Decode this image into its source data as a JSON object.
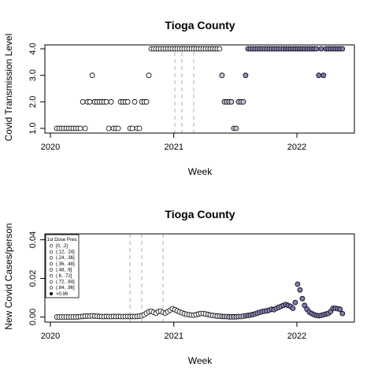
{
  "chart_data": [
    {
      "type": "scatter",
      "title": "Tioga County",
      "xlabel": "Week",
      "ylabel": "Covid Transmission Level",
      "x_ticks": [
        "2020",
        "2021",
        "2022"
      ],
      "y_ticks": [
        "1.0",
        "2.0",
        "3.0",
        "4.0"
      ],
      "ylim": [
        0.9,
        4.1
      ],
      "grid": false,
      "vlines": [
        "2021-01-04",
        "2021-01-25",
        "2021-03-01"
      ],
      "points": [
        [
          "2020-01-20",
          1,
          0
        ],
        [
          "2020-01-27",
          1,
          0
        ],
        [
          "2020-02-03",
          1,
          0
        ],
        [
          "2020-02-10",
          1,
          0
        ],
        [
          "2020-02-17",
          1,
          0
        ],
        [
          "2020-02-24",
          1,
          0
        ],
        [
          "2020-03-02",
          1,
          0
        ],
        [
          "2020-03-09",
          1,
          0
        ],
        [
          "2020-03-16",
          1,
          0
        ],
        [
          "2020-03-23",
          1,
          0
        ],
        [
          "2020-03-30",
          1,
          0
        ],
        [
          "2020-04-06",
          2,
          0
        ],
        [
          "2020-04-13",
          1,
          0
        ],
        [
          "2020-04-20",
          2,
          0
        ],
        [
          "2020-04-27",
          2,
          0
        ],
        [
          "2020-05-04",
          3,
          0
        ],
        [
          "2020-05-11",
          2,
          0
        ],
        [
          "2020-05-18",
          2,
          0
        ],
        [
          "2020-05-25",
          2,
          0
        ],
        [
          "2020-06-01",
          2,
          0
        ],
        [
          "2020-06-08",
          2,
          0
        ],
        [
          "2020-06-15",
          2,
          0
        ],
        [
          "2020-06-22",
          1,
          0
        ],
        [
          "2020-06-29",
          2,
          0
        ],
        [
          "2020-07-06",
          1,
          0
        ],
        [
          "2020-07-13",
          1,
          0
        ],
        [
          "2020-07-20",
          1,
          0
        ],
        [
          "2020-07-27",
          2,
          0
        ],
        [
          "2020-08-03",
          2,
          0
        ],
        [
          "2020-08-10",
          2,
          0
        ],
        [
          "2020-08-17",
          2,
          0
        ],
        [
          "2020-08-24",
          1,
          0
        ],
        [
          "2020-08-31",
          1,
          0
        ],
        [
          "2020-09-07",
          2,
          0
        ],
        [
          "2020-09-14",
          1,
          0
        ],
        [
          "2020-09-21",
          1,
          0
        ],
        [
          "2020-09-28",
          2,
          0
        ],
        [
          "2020-10-05",
          2,
          0
        ],
        [
          "2020-10-12",
          2,
          0
        ],
        [
          "2020-10-19",
          3,
          0
        ],
        [
          "2020-10-26",
          4,
          0
        ],
        [
          "2020-11-02",
          4,
          0
        ],
        [
          "2020-11-09",
          4,
          0
        ],
        [
          "2020-11-16",
          4,
          0
        ],
        [
          "2020-11-23",
          4,
          0
        ],
        [
          "2020-11-30",
          4,
          0
        ],
        [
          "2020-12-07",
          4,
          0
        ],
        [
          "2020-12-14",
          4,
          0
        ],
        [
          "2020-12-21",
          4,
          0
        ],
        [
          "2020-12-28",
          4,
          0
        ],
        [
          "2021-01-04",
          4,
          0
        ],
        [
          "2021-01-11",
          4,
          0
        ],
        [
          "2021-01-18",
          4,
          0
        ],
        [
          "2021-01-25",
          4,
          0
        ],
        [
          "2021-02-01",
          4,
          0
        ],
        [
          "2021-02-08",
          4,
          0
        ],
        [
          "2021-02-15",
          4,
          0
        ],
        [
          "2021-02-22",
          4,
          0
        ],
        [
          "2021-03-01",
          4,
          0
        ],
        [
          "2021-03-08",
          4,
          0
        ],
        [
          "2021-03-15",
          4,
          0
        ],
        [
          "2021-03-22",
          4,
          0
        ],
        [
          "2021-03-29",
          4,
          0
        ],
        [
          "2021-04-05",
          4,
          0
        ],
        [
          "2021-04-12",
          4,
          1
        ],
        [
          "2021-04-19",
          4,
          1
        ],
        [
          "2021-04-26",
          4,
          1
        ],
        [
          "2021-05-03",
          4,
          1
        ],
        [
          "2021-05-10",
          4,
          1
        ],
        [
          "2021-05-17",
          4,
          1
        ],
        [
          "2021-05-24",
          3,
          2
        ],
        [
          "2021-05-31",
          2,
          2
        ],
        [
          "2021-06-07",
          2,
          2
        ],
        [
          "2021-06-14",
          2,
          2
        ],
        [
          "2021-06-21",
          2,
          2
        ],
        [
          "2021-06-28",
          1,
          2
        ],
        [
          "2021-07-05",
          1,
          2
        ],
        [
          "2021-07-12",
          2,
          2
        ],
        [
          "2021-07-19",
          2,
          2
        ],
        [
          "2021-07-26",
          2,
          2
        ],
        [
          "2021-08-02",
          3,
          3
        ],
        [
          "2021-08-09",
          4,
          3
        ],
        [
          "2021-08-16",
          4,
          3
        ],
        [
          "2021-08-23",
          4,
          3
        ],
        [
          "2021-08-30",
          4,
          3
        ],
        [
          "2021-09-06",
          4,
          3
        ],
        [
          "2021-09-13",
          4,
          3
        ],
        [
          "2021-09-20",
          4,
          3
        ],
        [
          "2021-09-27",
          4,
          3
        ],
        [
          "2021-10-04",
          4,
          3
        ],
        [
          "2021-10-11",
          4,
          3
        ],
        [
          "2021-10-18",
          4,
          3
        ],
        [
          "2021-10-25",
          4,
          3
        ],
        [
          "2021-11-01",
          4,
          3
        ],
        [
          "2021-11-08",
          4,
          3
        ],
        [
          "2021-11-15",
          4,
          3
        ],
        [
          "2021-11-22",
          4,
          3
        ],
        [
          "2021-11-29",
          4,
          4
        ],
        [
          "2021-12-06",
          4,
          4
        ],
        [
          "2021-12-13",
          4,
          4
        ],
        [
          "2021-12-20",
          4,
          4
        ],
        [
          "2021-12-27",
          4,
          4
        ],
        [
          "2022-01-03",
          4,
          4
        ],
        [
          "2022-01-10",
          4,
          4
        ],
        [
          "2022-01-17",
          4,
          4
        ],
        [
          "2022-01-24",
          4,
          4
        ],
        [
          "2022-01-31",
          4,
          4
        ],
        [
          "2022-02-07",
          4,
          4
        ],
        [
          "2022-02-14",
          4,
          4
        ],
        [
          "2022-02-21",
          4,
          4
        ],
        [
          "2022-02-28",
          4,
          4
        ],
        [
          "2022-03-07",
          3,
          4
        ],
        [
          "2022-03-14",
          4,
          4
        ],
        [
          "2022-03-21",
          3,
          4
        ],
        [
          "2022-03-28",
          4,
          4
        ],
        [
          "2022-04-04",
          4,
          4
        ],
        [
          "2022-04-11",
          4,
          4
        ],
        [
          "2022-04-18",
          4,
          4
        ],
        [
          "2022-04-25",
          4,
          4
        ],
        [
          "2022-05-02",
          4,
          4
        ],
        [
          "2022-05-09",
          4,
          4
        ],
        [
          "2022-05-16",
          4,
          4
        ]
      ]
    },
    {
      "type": "scatter",
      "title": "Tioga County",
      "xlabel": "Week",
      "ylabel": "New Covid Cases/person",
      "x_ticks": [
        "2020",
        "2021",
        "2022"
      ],
      "y_ticks": [
        "0.00",
        "0.02",
        "0.04"
      ],
      "ylim": [
        -0.002,
        0.042
      ],
      "grid": false,
      "vlines": [
        "2020-08-24",
        "2020-09-28",
        "2020-11-30"
      ],
      "legend": {
        "title": "1st Dose Prev.",
        "position": "top-left",
        "entries": [
          "[0, .2]",
          "(.12, .24]",
          "(.24, .36]",
          "(.36, .48]",
          "(.48, .6]",
          "(.6, .72]",
          "(.72, .84]",
          "(.84, .96]",
          ">0.96"
        ]
      },
      "points": [
        [
          "2020-01-20",
          0.0,
          0
        ],
        [
          "2020-01-27",
          0.0,
          0
        ],
        [
          "2020-02-03",
          0.0,
          0
        ],
        [
          "2020-02-10",
          0.0,
          0
        ],
        [
          "2020-02-17",
          0.0,
          0
        ],
        [
          "2020-02-24",
          0.0,
          0
        ],
        [
          "2020-03-02",
          0.0,
          0
        ],
        [
          "2020-03-09",
          0.0,
          0
        ],
        [
          "2020-03-16",
          0.0,
          0
        ],
        [
          "2020-03-23",
          0.0001,
          0
        ],
        [
          "2020-03-30",
          0.0002,
          0
        ],
        [
          "2020-04-06",
          0.0003,
          0
        ],
        [
          "2020-04-13",
          0.0004,
          0
        ],
        [
          "2020-04-20",
          0.0005,
          0
        ],
        [
          "2020-04-27",
          0.0004,
          0
        ],
        [
          "2020-05-04",
          0.0006,
          0
        ],
        [
          "2020-05-11",
          0.0005,
          0
        ],
        [
          "2020-05-18",
          0.0004,
          0
        ],
        [
          "2020-05-25",
          0.0003,
          0
        ],
        [
          "2020-06-01",
          0.0002,
          0
        ],
        [
          "2020-06-08",
          0.0002,
          0
        ],
        [
          "2020-06-15",
          0.0003,
          0
        ],
        [
          "2020-06-22",
          0.0002,
          0
        ],
        [
          "2020-06-29",
          0.0002,
          0
        ],
        [
          "2020-07-06",
          0.0003,
          0
        ],
        [
          "2020-07-13",
          0.0002,
          0
        ],
        [
          "2020-07-20",
          0.0003,
          0
        ],
        [
          "2020-07-27",
          0.0002,
          0
        ],
        [
          "2020-08-03",
          0.0002,
          0
        ],
        [
          "2020-08-10",
          0.0002,
          0
        ],
        [
          "2020-08-17",
          0.0003,
          0
        ],
        [
          "2020-08-24",
          0.0002,
          0
        ],
        [
          "2020-08-31",
          0.0003,
          0
        ],
        [
          "2020-09-07",
          0.0002,
          0
        ],
        [
          "2020-09-14",
          0.0003,
          0
        ],
        [
          "2020-09-21",
          0.0004,
          0
        ],
        [
          "2020-09-28",
          0.0006,
          0
        ],
        [
          "2020-10-05",
          0.0012,
          0
        ],
        [
          "2020-10-12",
          0.002,
          0
        ],
        [
          "2020-10-19",
          0.0027,
          0
        ],
        [
          "2020-10-26",
          0.003,
          0
        ],
        [
          "2020-11-02",
          0.0024,
          0
        ],
        [
          "2020-11-09",
          0.0019,
          0
        ],
        [
          "2020-11-16",
          0.0028,
          0
        ],
        [
          "2020-11-23",
          0.003,
          0
        ],
        [
          "2020-11-30",
          0.0024,
          0
        ],
        [
          "2020-12-07",
          0.002,
          0
        ],
        [
          "2020-12-14",
          0.0027,
          0
        ],
        [
          "2020-12-21",
          0.0035,
          0
        ],
        [
          "2020-12-28",
          0.0043,
          0
        ],
        [
          "2021-01-04",
          0.0038,
          0
        ],
        [
          "2021-01-11",
          0.0032,
          0
        ],
        [
          "2021-01-18",
          0.0026,
          0
        ],
        [
          "2021-01-25",
          0.0022,
          0
        ],
        [
          "2021-02-01",
          0.0017,
          0
        ],
        [
          "2021-02-08",
          0.0014,
          0
        ],
        [
          "2021-02-15",
          0.0012,
          0
        ],
        [
          "2021-02-22",
          0.001,
          0
        ],
        [
          "2021-03-01",
          0.001,
          0
        ],
        [
          "2021-03-08",
          0.0012,
          0
        ],
        [
          "2021-03-15",
          0.0015,
          0
        ],
        [
          "2021-03-22",
          0.0018,
          0
        ],
        [
          "2021-03-29",
          0.0018,
          0
        ],
        [
          "2021-04-05",
          0.0016,
          0
        ],
        [
          "2021-04-12",
          0.0013,
          1
        ],
        [
          "2021-04-19",
          0.001,
          1
        ],
        [
          "2021-04-26",
          0.0008,
          1
        ],
        [
          "2021-05-03",
          0.0006,
          1
        ],
        [
          "2021-05-10",
          0.0005,
          1
        ],
        [
          "2021-05-17",
          0.0004,
          1
        ],
        [
          "2021-05-24",
          0.0003,
          2
        ],
        [
          "2021-05-31",
          0.0002,
          2
        ],
        [
          "2021-06-07",
          0.0002,
          2
        ],
        [
          "2021-06-14",
          0.0001,
          2
        ],
        [
          "2021-06-21",
          0.0001,
          2
        ],
        [
          "2021-06-28",
          0.0001,
          2
        ],
        [
          "2021-07-05",
          0.0001,
          2
        ],
        [
          "2021-07-12",
          0.0002,
          2
        ],
        [
          "2021-07-19",
          0.0002,
          2
        ],
        [
          "2021-07-26",
          0.0004,
          2
        ],
        [
          "2021-08-02",
          0.0006,
          3
        ],
        [
          "2021-08-09",
          0.0008,
          3
        ],
        [
          "2021-08-16",
          0.001,
          3
        ],
        [
          "2021-08-23",
          0.0013,
          3
        ],
        [
          "2021-08-30",
          0.0016,
          3
        ],
        [
          "2021-09-06",
          0.002,
          3
        ],
        [
          "2021-09-13",
          0.0024,
          3
        ],
        [
          "2021-09-20",
          0.0028,
          3
        ],
        [
          "2021-09-27",
          0.003,
          3
        ],
        [
          "2021-10-04",
          0.0032,
          3
        ],
        [
          "2021-10-11",
          0.0035,
          3
        ],
        [
          "2021-10-18",
          0.004,
          3
        ],
        [
          "2021-10-25",
          0.0038,
          3
        ],
        [
          "2021-11-01",
          0.0045,
          3
        ],
        [
          "2021-11-08",
          0.005,
          3
        ],
        [
          "2021-11-15",
          0.0055,
          3
        ],
        [
          "2021-11-22",
          0.006,
          3
        ],
        [
          "2021-11-29",
          0.0065,
          4
        ],
        [
          "2021-12-06",
          0.006,
          4
        ],
        [
          "2021-12-13",
          0.0055,
          4
        ],
        [
          "2021-12-20",
          0.0045,
          4
        ],
        [
          "2021-12-27",
          0.0075,
          4
        ],
        [
          "2022-01-03",
          0.017,
          4
        ],
        [
          "2022-01-10",
          0.014,
          4
        ],
        [
          "2022-01-17",
          0.0095,
          4
        ],
        [
          "2022-01-24",
          0.006,
          4
        ],
        [
          "2022-01-31",
          0.004,
          4
        ],
        [
          "2022-02-07",
          0.0025,
          4
        ],
        [
          "2022-02-14",
          0.0018,
          4
        ],
        [
          "2022-02-21",
          0.0012,
          4
        ],
        [
          "2022-02-28",
          0.0008,
          4
        ],
        [
          "2022-03-07",
          0.0006,
          4
        ],
        [
          "2022-03-14",
          0.0008,
          4
        ],
        [
          "2022-03-21",
          0.0012,
          4
        ],
        [
          "2022-03-28",
          0.0015,
          4
        ],
        [
          "2022-04-04",
          0.0018,
          4
        ],
        [
          "2022-04-11",
          0.0028,
          4
        ],
        [
          "2022-04-18",
          0.0045,
          4
        ],
        [
          "2022-04-25",
          0.0045,
          4
        ],
        [
          "2022-05-02",
          0.0043,
          4
        ],
        [
          "2022-05-09",
          0.004,
          4
        ],
        [
          "2022-05-16",
          0.0018,
          4
        ]
      ]
    }
  ],
  "colors": {
    "point_fill": [
      "#ffffff",
      "#f0f0f6",
      "#c8c6dc",
      "#8f8cbd",
      "#7f7ab3"
    ],
    "legend_fill": [
      "#ffffff",
      "#ffffff",
      "#ffffff",
      "#ffffff",
      "#ffffff",
      "#ffffff",
      "#ffffff",
      "#ffffff",
      "#000000"
    ],
    "vline": "#bdbdbd"
  }
}
